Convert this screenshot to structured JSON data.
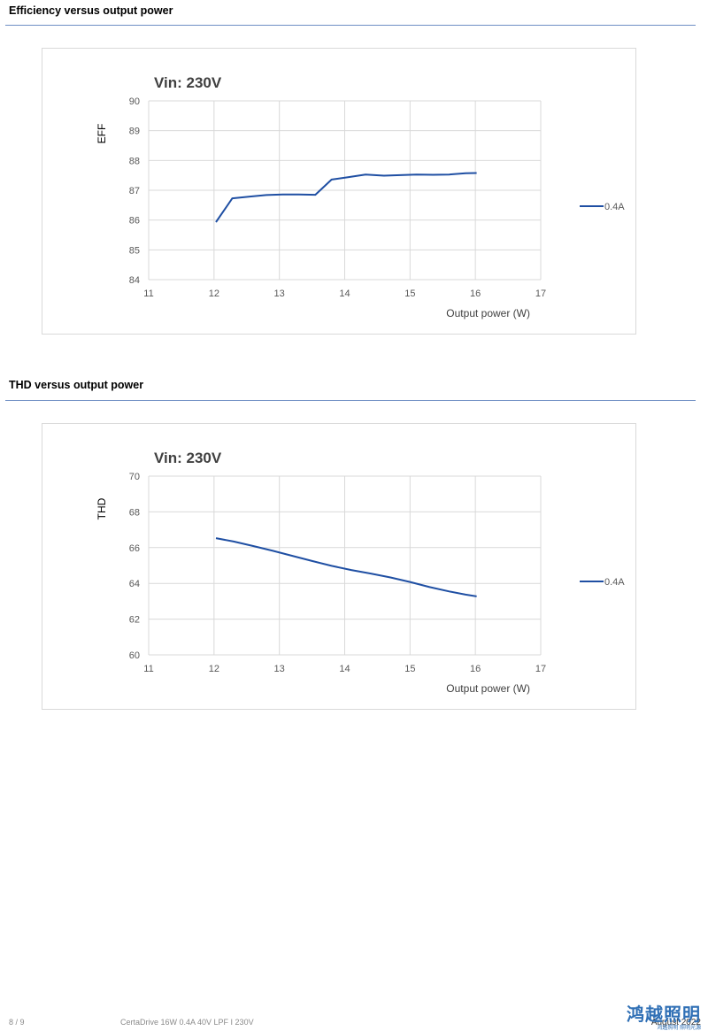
{
  "sections": [
    {
      "title": "Efficiency versus output power"
    },
    {
      "title": "THD versus output power"
    }
  ],
  "chart_data": [
    {
      "type": "line",
      "title": "Vin: 230V",
      "xlabel": "Output power (W)",
      "ylabel": "EFF",
      "xlim": [
        11,
        17
      ],
      "ylim": [
        84,
        90
      ],
      "xticks": [
        "11",
        "12",
        "13",
        "14",
        "15",
        "16",
        "17"
      ],
      "yticks": [
        "84",
        "85",
        "86",
        "87",
        "88",
        "89",
        "90"
      ],
      "grid": true,
      "legend_position": "right",
      "line_color": "#1f4fa3",
      "series": [
        {
          "name": "0.4A",
          "x": [
            12.03,
            12.28,
            12.55,
            12.8,
            13.05,
            13.3,
            13.55,
            13.8,
            14.05,
            14.32,
            14.6,
            14.9,
            15.1,
            15.35,
            15.6,
            15.85,
            16.02
          ],
          "y": [
            85.93,
            86.73,
            86.79,
            86.84,
            86.86,
            86.86,
            86.85,
            87.36,
            87.44,
            87.53,
            87.49,
            87.51,
            87.53,
            87.52,
            87.53,
            87.57,
            87.58
          ]
        }
      ]
    },
    {
      "type": "line",
      "title": "Vin: 230V",
      "xlabel": "Output power (W)",
      "ylabel": "THD",
      "xlim": [
        11,
        17
      ],
      "ylim": [
        60,
        70
      ],
      "xticks": [
        "11",
        "12",
        "13",
        "14",
        "15",
        "16",
        "17"
      ],
      "yticks": [
        "60",
        "62",
        "64",
        "66",
        "68",
        "70"
      ],
      "grid": true,
      "legend_position": "right",
      "line_color": "#1f4fa3",
      "series": [
        {
          "name": "0.4A",
          "x": [
            12.03,
            12.3,
            12.6,
            12.9,
            13.2,
            13.5,
            13.8,
            14.1,
            14.4,
            14.7,
            15.0,
            15.3,
            15.6,
            15.85,
            16.02
          ],
          "y": [
            66.53,
            66.34,
            66.09,
            65.82,
            65.54,
            65.25,
            64.98,
            64.75,
            64.55,
            64.33,
            64.08,
            63.79,
            63.55,
            63.37,
            63.27
          ]
        }
      ]
    }
  ],
  "footer": {
    "page": "8 / 9",
    "product": "CertaDrive 16W 0.4A 40V LPF I 230V",
    "date": "August 2022",
    "logo_text": "鸿越照明",
    "logo_sub": "鸿越照明 照明光源"
  }
}
